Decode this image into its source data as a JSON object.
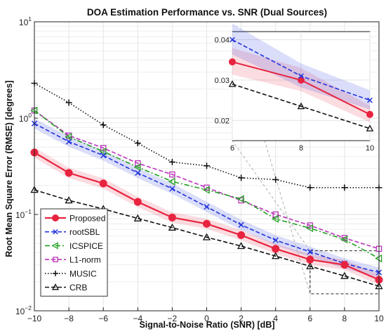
{
  "chart_data": {
    "type": "line",
    "title": "DOA Estimation Performance vs. SNR (Dual Sources)",
    "xlabel": "Signal-to-Noise Ratio (SNR) [dB]",
    "ylabel": "Root Mean Square Error (RMSE) [degrees]",
    "x_scale": "linear",
    "y_scale": "log",
    "xlim": [
      -10,
      10
    ],
    "ylim": [
      0.01,
      10
    ],
    "grid": true,
    "x_ticks": [
      "-10",
      "-8",
      "-6",
      "-4",
      "-2",
      "0",
      "2",
      "4",
      "6",
      "8",
      "10"
    ],
    "y_ticks": [
      {
        "base": "10",
        "exp": "-2"
      },
      {
        "base": "10",
        "exp": "-1"
      },
      {
        "base": "10",
        "exp": "0"
      },
      {
        "base": "10",
        "exp": "1"
      }
    ],
    "legend_position": "bottom-left",
    "x": [
      -10,
      -8,
      -6,
      -4,
      -2,
      0,
      2,
      4,
      6,
      8,
      10
    ],
    "series": [
      {
        "name": "Proposed",
        "color": "#e8233f",
        "dash": "solid",
        "marker": "circle",
        "band": true,
        "values": [
          0.44,
          0.27,
          0.21,
          0.135,
          0.093,
          0.08,
          0.061,
          0.044,
          0.034,
          0.03,
          0.021
        ]
      },
      {
        "name": "rootSBL",
        "color": "#2233dd",
        "dash": "dashed",
        "marker": "x",
        "band": true,
        "values": [
          0.88,
          0.57,
          0.41,
          0.27,
          0.185,
          0.12,
          0.078,
          0.054,
          0.041,
          0.031,
          0.025
        ]
      },
      {
        "name": "ICSPICE",
        "color": "#22a022",
        "dash": "dashdot",
        "marker": "triangle-left",
        "band": false,
        "values": [
          1.2,
          0.64,
          0.45,
          0.31,
          0.22,
          0.18,
          0.145,
          0.09,
          0.072,
          0.055,
          0.035
        ]
      },
      {
        "name": "L1-norm",
        "color": "#bb33bb",
        "dash": "dashed",
        "marker": "square",
        "band": false,
        "values": [
          1.2,
          0.66,
          0.49,
          0.34,
          0.26,
          0.19,
          0.14,
          0.1,
          0.077,
          0.057,
          0.044
        ]
      },
      {
        "name": "MUSIC",
        "color": "#111111",
        "dash": "dotted",
        "marker": "plus",
        "band": false,
        "values": [
          2.3,
          1.45,
          0.85,
          0.55,
          0.35,
          0.32,
          0.24,
          0.23,
          0.19,
          0.19,
          0.19
        ]
      },
      {
        "name": "CRB",
        "color": "#111111",
        "dash": "dashed",
        "marker": "triangle-up",
        "band": false,
        "values": [
          0.18,
          0.14,
          0.114,
          0.091,
          0.073,
          0.058,
          0.047,
          0.037,
          0.029,
          0.023,
          0.018
        ]
      }
    ],
    "inset": {
      "xlim": [
        6,
        10
      ],
      "ylim": [
        0.015,
        0.042
      ],
      "x_ticks": [
        "6",
        "8",
        "10"
      ],
      "y_ticks": [
        "0.02",
        "0.03",
        "0.04"
      ],
      "series": [
        "Proposed",
        "rootSBL",
        "CRB"
      ],
      "inset_values": {
        "x": [
          6,
          8,
          10
        ],
        "Proposed": [
          0.0345,
          0.03,
          0.0215
        ],
        "rootSBL": [
          0.04,
          0.031,
          0.025
        ],
        "CRB": [
          0.029,
          0.0235,
          0.018
        ]
      }
    }
  }
}
